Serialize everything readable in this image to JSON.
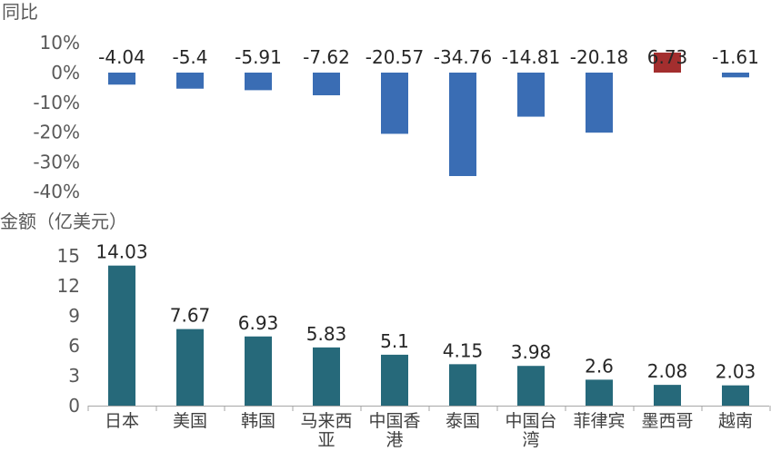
{
  "chart_data": [
    {
      "type": "bar",
      "ylabel": "同比",
      "ytick_labels": [
        "10%",
        "0%",
        "-10%",
        "-20%",
        "-30%",
        "-40%"
      ],
      "ylim": [
        -40,
        10
      ],
      "categories": [
        "日本",
        "美国",
        "韩国",
        "马来西亚",
        "中国香港",
        "泰国",
        "中国台湾",
        "菲律宾",
        "墨西哥",
        "越南"
      ],
      "values": [
        -4.04,
        -5.4,
        -5.91,
        -7.62,
        -20.57,
        -34.76,
        -14.81,
        -20.18,
        6.73,
        -1.61
      ],
      "value_labels": [
        "-4.04",
        "-5.4",
        "-5.91",
        "-7.62",
        "-20.57",
        "-34.76",
        "-14.81",
        "-20.18",
        "6.73",
        "-1.61"
      ],
      "colors": {
        "negative": "#3a6db4",
        "positive": "#a32e2e"
      }
    },
    {
      "type": "bar",
      "ylabel": "金额（亿美元）",
      "ytick_labels": [
        "15",
        "12",
        "9",
        "6",
        "3",
        "0"
      ],
      "ylim": [
        0,
        15
      ],
      "categories": [
        "日本",
        "美国",
        "韩国",
        "马来西亚",
        "中国香港",
        "泰国",
        "中国台湾",
        "菲律宾",
        "墨西哥",
        "越南"
      ],
      "category_lines": [
        [
          "日本"
        ],
        [
          "美国"
        ],
        [
          "韩国"
        ],
        [
          "马来西",
          "亚"
        ],
        [
          "中国香",
          "港"
        ],
        [
          "泰国"
        ],
        [
          "中国台",
          "湾"
        ],
        [
          "菲律宾"
        ],
        [
          "墨西哥"
        ],
        [
          "越南"
        ]
      ],
      "values": [
        14.03,
        7.67,
        6.93,
        5.83,
        5.1,
        4.15,
        3.98,
        2.6,
        2.08,
        2.03
      ],
      "value_labels": [
        "14.03",
        "7.67",
        "6.93",
        "5.83",
        "5.1",
        "4.15",
        "3.98",
        "2.6",
        "2.08",
        "2.03"
      ],
      "colors": {
        "bar": "#26697a",
        "axis": "#a6a6a6"
      }
    }
  ]
}
